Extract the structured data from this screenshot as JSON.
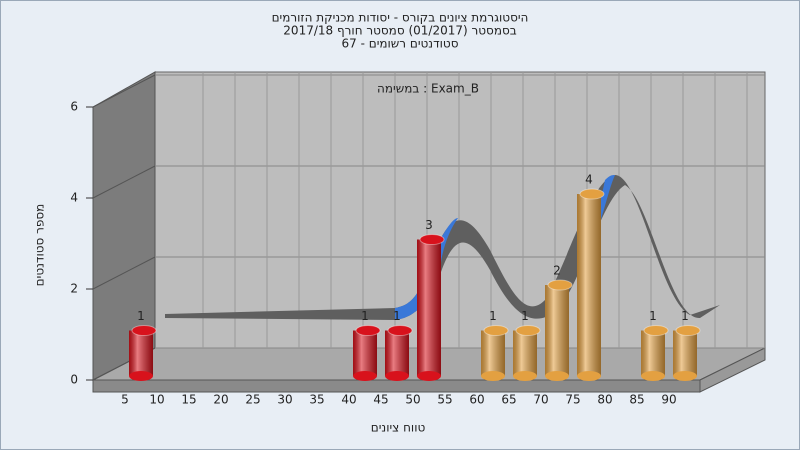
{
  "chart_data": {
    "type": "bar",
    "title": [
      "היסטוגרמת ציונים בקורס - יסודות מכניקת הזורמים",
      "בסמסטר (01/2017) סמסטר חורף 2017/18",
      "סטודנטים רשומים - 67"
    ],
    "annotation": "Exam_B : במשימה",
    "x_label": "טווח ציונים",
    "y_label": "מספר סטודנטים",
    "categories": [
      "5",
      "10",
      "15",
      "20",
      "25",
      "30",
      "35",
      "40",
      "45",
      "50",
      "55",
      "60",
      "65",
      "70",
      "75",
      "80",
      "85",
      "90"
    ],
    "series": [
      {
        "color": "#d8121c",
        "values": [
          1,
          null,
          null,
          null,
          null,
          null,
          null,
          1,
          1,
          3,
          null,
          null,
          null,
          null,
          null,
          null,
          null,
          null
        ]
      },
      {
        "color": "#e3a041",
        "values": [
          null,
          null,
          null,
          null,
          null,
          null,
          null,
          null,
          null,
          null,
          null,
          1,
          1,
          2,
          4,
          null,
          1,
          1
        ]
      }
    ],
    "ylim": [
      0,
      6
    ],
    "yticks": [
      0,
      2,
      4,
      6
    ],
    "grid": true
  }
}
